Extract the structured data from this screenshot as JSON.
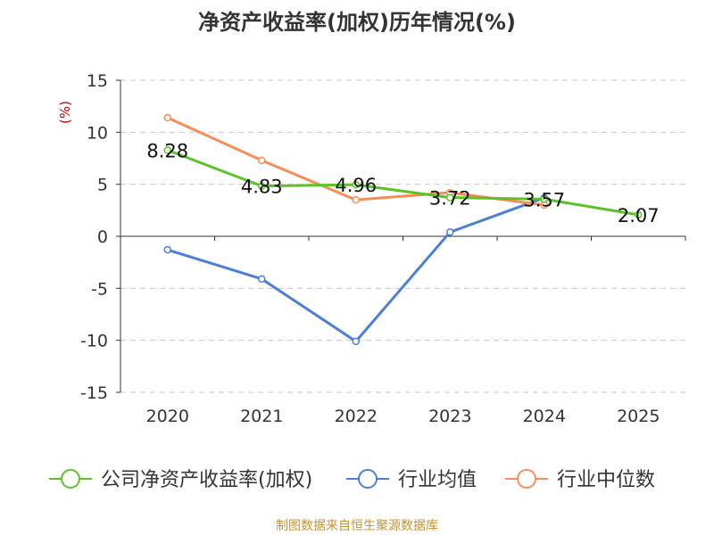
{
  "chart_data": {
    "type": "line",
    "title": "净资产收益率(加权)历年情况(%)",
    "ylabel": "(%)",
    "xlabel": "",
    "categories": [
      "2020",
      "2021",
      "2022",
      "2023",
      "2024",
      "2025"
    ],
    "ylim": [
      -15,
      15
    ],
    "yticks": [
      15,
      10,
      5,
      0,
      -5,
      -10,
      -15
    ],
    "grid": true,
    "legend_position": "bottom",
    "series": [
      {
        "name": "公司净资产收益率(加权)",
        "color": "#5ac427",
        "values": [
          8.28,
          4.83,
          4.96,
          3.72,
          3.57,
          2.07
        ],
        "labels": [
          "8.28",
          "4.83",
          "4.96",
          "3.72",
          "3.57",
          "2.07"
        ]
      },
      {
        "name": "行业均值",
        "color": "#4a7fd8",
        "values": [
          -1.3,
          -4.1,
          -10.1,
          0.4,
          3.7,
          null
        ]
      },
      {
        "name": "行业中位数",
        "color": "#f58d56",
        "values": [
          11.4,
          7.3,
          3.5,
          4.2,
          3.0,
          null
        ]
      }
    ],
    "source": "制图数据来自恒生聚源数据库"
  },
  "colors": {
    "grid": "#c8c8c8",
    "axis": "#333333",
    "ylabel": "#cc0000",
    "source": "#c8922f",
    "title": "#333333"
  }
}
